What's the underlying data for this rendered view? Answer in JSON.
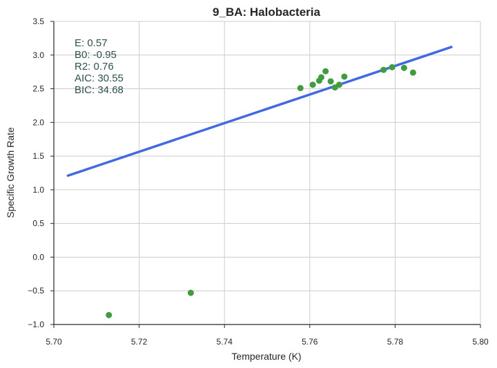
{
  "chart_data": {
    "type": "scatter",
    "title": "9_BA: Halobacteria",
    "xlabel": "Temperature (K)",
    "ylabel": "Specific Growth Rate",
    "xlim": [
      5.7,
      5.8
    ],
    "ylim": [
      -1.0,
      3.5
    ],
    "x_ticks": [
      "5.70",
      "5.72",
      "5.74",
      "5.76",
      "5.78",
      "5.80"
    ],
    "y_ticks": [
      "−1.0",
      "−0.5",
      "0.0",
      "0.5",
      "1.0",
      "1.5",
      "2.0",
      "2.5",
      "3.0",
      "3.5"
    ],
    "grid": true,
    "points": [
      {
        "x": 5.7129,
        "y": -0.86
      },
      {
        "x": 5.7321,
        "y": -0.53
      },
      {
        "x": 5.7578,
        "y": 2.51
      },
      {
        "x": 5.7607,
        "y": 2.56
      },
      {
        "x": 5.7622,
        "y": 2.62
      },
      {
        "x": 5.7627,
        "y": 2.67
      },
      {
        "x": 5.7637,
        "y": 2.76
      },
      {
        "x": 5.7649,
        "y": 2.61
      },
      {
        "x": 5.7659,
        "y": 2.52
      },
      {
        "x": 5.7669,
        "y": 2.56
      },
      {
        "x": 5.7681,
        "y": 2.68
      },
      {
        "x": 5.7773,
        "y": 2.78
      },
      {
        "x": 5.7793,
        "y": 2.82
      },
      {
        "x": 5.7821,
        "y": 2.81
      },
      {
        "x": 5.7842,
        "y": 2.74
      }
    ],
    "fit_line": {
      "x": [
        5.7033,
        5.7932
      ],
      "y": [
        1.21,
        3.12
      ]
    },
    "annotation": [
      "E:  0.57",
      "B0:  -0.95",
      "R2:  0.76",
      "AIC: 30.55",
      "BIC: 34.68"
    ],
    "colors": {
      "points": "#3f9c40",
      "fit": "#4169e1",
      "annotation": "#2f4f4f",
      "grid": "#cccccc",
      "axis": "#262626"
    }
  }
}
